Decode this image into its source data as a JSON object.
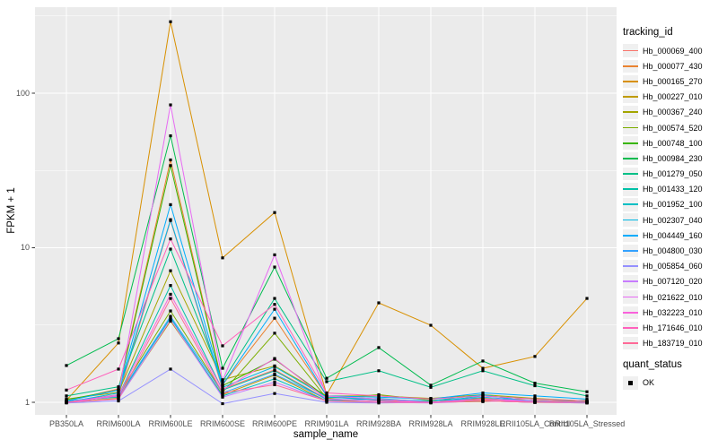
{
  "figure": {
    "y_axis": {
      "title": "FPKM + 1"
    },
    "x_axis": {
      "title": "sample_name"
    },
    "legend": {
      "tracking_title": "tracking_id",
      "quant_title": "quant_status",
      "quant_ok_label": "OK"
    },
    "colors": {
      "panel_bg": "#EBEBEB",
      "grid": "#FFFFFF",
      "tick_label": "#4D4D4D",
      "axis_title": "#000000",
      "legend_key_bg": "#F0F0F0",
      "point": "#000000"
    }
  },
  "chart_data": {
    "type": "line",
    "title": "",
    "xlabel": "sample_name",
    "ylabel": "FPKM + 1",
    "yscale": "log10",
    "yticks": [
      1,
      10,
      100
    ],
    "yminor": [
      3.1623,
      31.623,
      316.23
    ],
    "ylim": [
      0.84,
      350
    ],
    "grid": true,
    "legend_position": "right",
    "point_marker": "black-square",
    "quant_status_values": [
      "OK"
    ],
    "categories": [
      "PB350LA",
      "RRIM600LA",
      "RRIM600LE",
      "RRIM600SE",
      "RRIM600PE",
      "RRIM901LA",
      "RRIM928BA",
      "RRIM928LA",
      "RRIM928LE",
      "RRII105LA_Control",
      "RRII105LA_Stressed"
    ],
    "series": [
      {
        "name": "Hb_000069_400",
        "color": "#F8766D",
        "values": [
          1.0,
          1.1,
          15.0,
          1.22,
          1.62,
          1.05,
          1.02,
          1.0,
          1.06,
          1.0,
          0.99
        ]
      },
      {
        "name": "Hb_000077_430",
        "color": "#EA8331",
        "values": [
          1.02,
          1.22,
          37.0,
          1.3,
          3.5,
          1.1,
          1.05,
          1.01,
          1.03,
          1.06,
          1.0
        ]
      },
      {
        "name": "Hb_000165_270",
        "color": "#D89000",
        "values": [
          1.03,
          2.42,
          290.0,
          8.6,
          16.9,
          1.12,
          4.4,
          3.15,
          1.66,
          1.98,
          4.7
        ]
      },
      {
        "name": "Hb_000227_010",
        "color": "#C09B00",
        "values": [
          1.0,
          1.06,
          3.35,
          1.12,
          1.5,
          1.02,
          1.03,
          1.0,
          1.01,
          1.03,
          1.0
        ]
      },
      {
        "name": "Hb_000367_240",
        "color": "#A3A500",
        "values": [
          1.05,
          1.16,
          7.1,
          1.4,
          1.72,
          1.1,
          1.1,
          1.06,
          1.12,
          1.06,
          1.02
        ]
      },
      {
        "name": "Hb_000574_520",
        "color": "#7CAE00",
        "values": [
          1.01,
          1.12,
          3.9,
          1.16,
          2.8,
          1.06,
          1.12,
          1.03,
          1.06,
          1.01,
          1.03
        ]
      },
      {
        "name": "Hb_000748_100",
        "color": "#39B600",
        "values": [
          1.04,
          1.2,
          34.0,
          1.28,
          1.9,
          1.08,
          1.05,
          1.0,
          1.02,
          1.0,
          1.01
        ]
      },
      {
        "name": "Hb_000984_230",
        "color": "#00BB4E",
        "values": [
          1.73,
          2.58,
          53.0,
          1.66,
          7.5,
          1.43,
          2.26,
          1.29,
          1.85,
          1.33,
          1.17
        ]
      },
      {
        "name": "Hb_001279_050",
        "color": "#00C087",
        "values": [
          1.1,
          1.26,
          9.8,
          1.36,
          4.7,
          1.36,
          1.6,
          1.25,
          1.6,
          1.28,
          1.1
        ]
      },
      {
        "name": "Hb_001433_120",
        "color": "#00C1A7",
        "values": [
          1.0,
          1.1,
          5.7,
          1.2,
          1.6,
          1.04,
          1.02,
          1.0,
          1.05,
          1.02,
          1.0
        ]
      },
      {
        "name": "Hb_001952_100",
        "color": "#00BFC4",
        "values": [
          1.02,
          1.08,
          3.52,
          1.1,
          1.42,
          1.02,
          1.06,
          1.0,
          1.1,
          1.05,
          1.02
        ]
      },
      {
        "name": "Hb_002307_040",
        "color": "#00B8E5",
        "values": [
          1.0,
          1.15,
          15.2,
          1.25,
          1.7,
          1.08,
          1.04,
          1.02,
          1.12,
          1.0,
          1.0
        ]
      },
      {
        "name": "Hb_004449_160",
        "color": "#00ACFC",
        "values": [
          1.02,
          1.2,
          19.0,
          1.3,
          4.0,
          1.1,
          1.08,
          1.05,
          1.15,
          1.1,
          1.05
        ]
      },
      {
        "name": "Hb_004800_030",
        "color": "#35A2FF",
        "values": [
          1.0,
          1.1,
          3.6,
          1.15,
          1.52,
          1.05,
          1.02,
          1.0,
          1.08,
          1.02,
          1.0
        ]
      },
      {
        "name": "Hb_005854_060",
        "color": "#9590FF",
        "values": [
          0.99,
          1.02,
          1.64,
          0.98,
          1.14,
          1.0,
          0.99,
          1.0,
          1.02,
          1.0,
          0.99
        ]
      },
      {
        "name": "Hb_007120_020",
        "color": "#C77CFF",
        "values": [
          1.0,
          1.05,
          3.42,
          1.08,
          1.35,
          1.02,
          1.0,
          0.99,
          1.02,
          1.0,
          1.0
        ]
      },
      {
        "name": "Hb_021622_010",
        "color": "#E76BF3",
        "values": [
          1.0,
          1.12,
          84.0,
          1.38,
          9.0,
          1.1,
          1.05,
          1.0,
          1.05,
          1.02,
          1.0
        ]
      },
      {
        "name": "Hb_032223_010",
        "color": "#FA62DB",
        "values": [
          1.0,
          1.1,
          5.0,
          1.2,
          1.92,
          1.05,
          1.02,
          1.0,
          1.05,
          1.0,
          1.0
        ]
      },
      {
        "name": "Hb_171646_010",
        "color": "#FF62BC",
        "values": [
          1.2,
          1.64,
          11.4,
          2.32,
          4.3,
          1.15,
          1.1,
          1.05,
          1.1,
          1.05,
          1.02
        ]
      },
      {
        "name": "Hb_183719_010",
        "color": "#FF6A98",
        "values": [
          1.0,
          1.05,
          4.7,
          1.15,
          1.3,
          1.02,
          1.0,
          1.0,
          1.02,
          1.0,
          1.0
        ]
      }
    ]
  }
}
